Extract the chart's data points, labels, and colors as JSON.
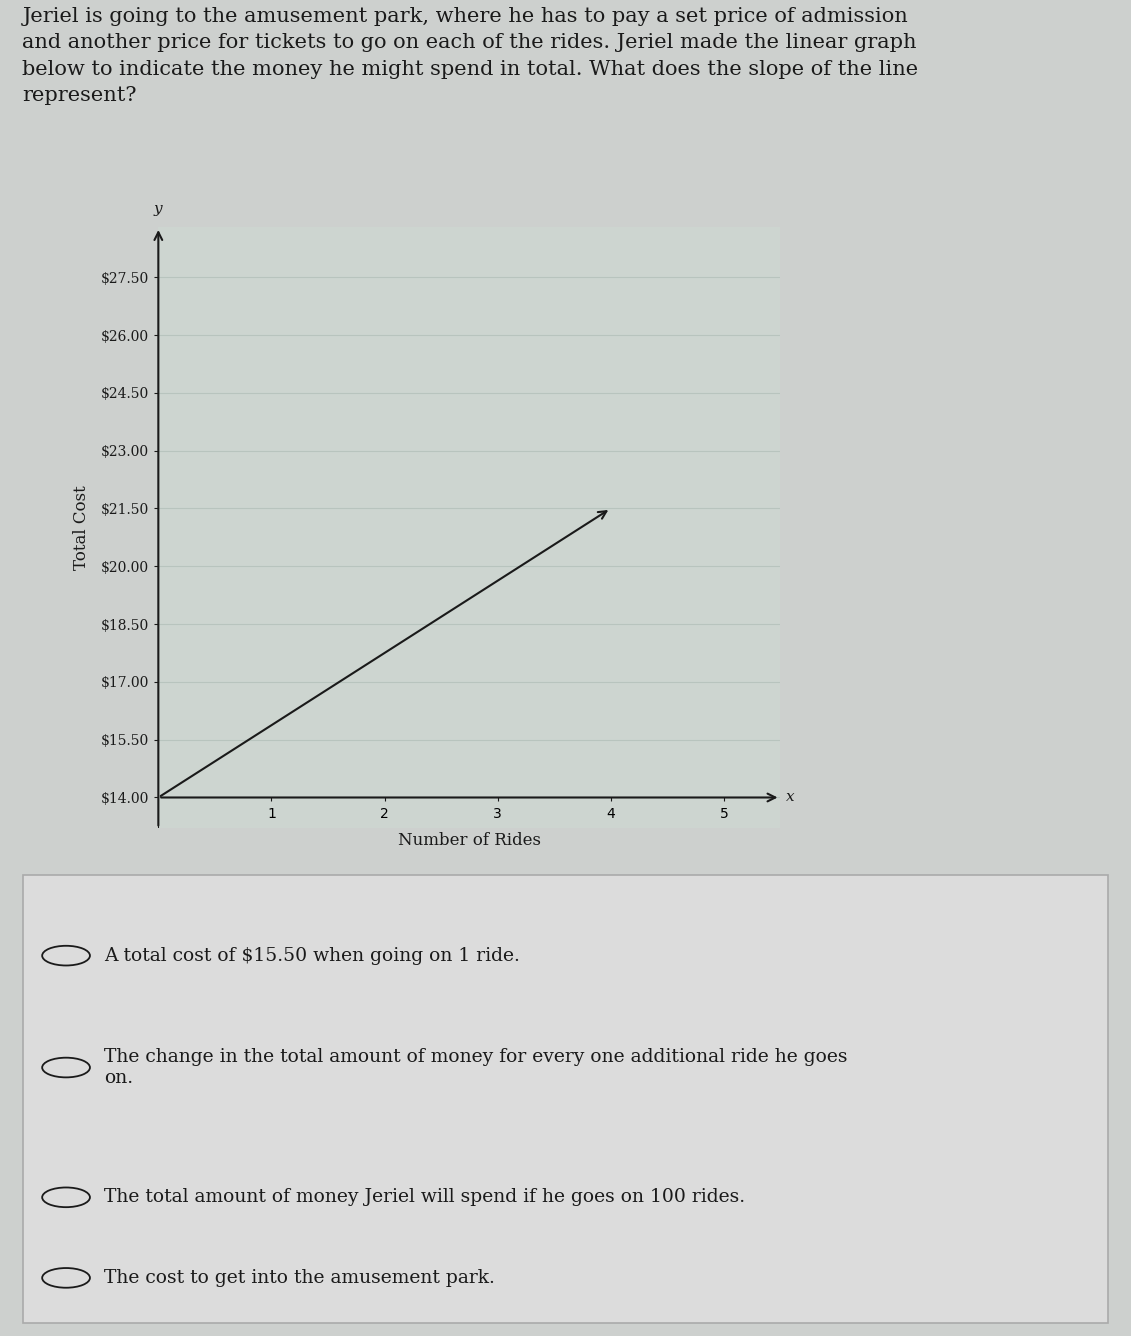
{
  "question_text": "Jeriel is going to the amusement park, where he has to pay a set price of admission\nand another price for tickets to go on each of the rides. Jeriel made the linear graph\nbelow to indicate the money he might spend in total. What does the slope of the line\nrepresent?",
  "bg_color": "#cdd0ce",
  "graph_bg_color": "#cdd5d0",
  "ylabel": "Total Cost",
  "xlabel": "Number of Rides",
  "yticks": [
    14.0,
    15.5,
    17.0,
    18.5,
    20.0,
    21.5,
    23.0,
    24.5,
    26.0,
    27.5
  ],
  "ytick_labels": [
    "$14.00",
    "$15.50",
    "$17.00",
    "$18.50",
    "$20.00",
    "$21.50",
    "$23.00",
    "$24.50",
    "$26.00",
    "$27.50"
  ],
  "xticks": [
    1,
    2,
    3,
    4,
    5
  ],
  "xlim": [
    0,
    5.5
  ],
  "ylim": [
    13.2,
    28.8
  ],
  "line_x": [
    0,
    4
  ],
  "line_y": [
    14.0,
    21.5
  ],
  "line_color": "#1a1a1a",
  "axis_color": "#1a1a1a",
  "choices_bg": "#dcdcdc",
  "choices": [
    "A total cost of $15.50 when going on 1 ride.",
    "The change in the total amount of money for every one additional ride he goes\non.",
    "The total amount of money Jeriel will spend if he goes on 100 rides.",
    "The cost to get into the amusement park."
  ],
  "radio_filled": [
    false,
    false,
    false,
    false
  ],
  "text_color": "#1a1a1a",
  "font_family": "serif",
  "grid_color": "#b8c4be",
  "y_origin": 14.0,
  "x_origin": 0.0
}
